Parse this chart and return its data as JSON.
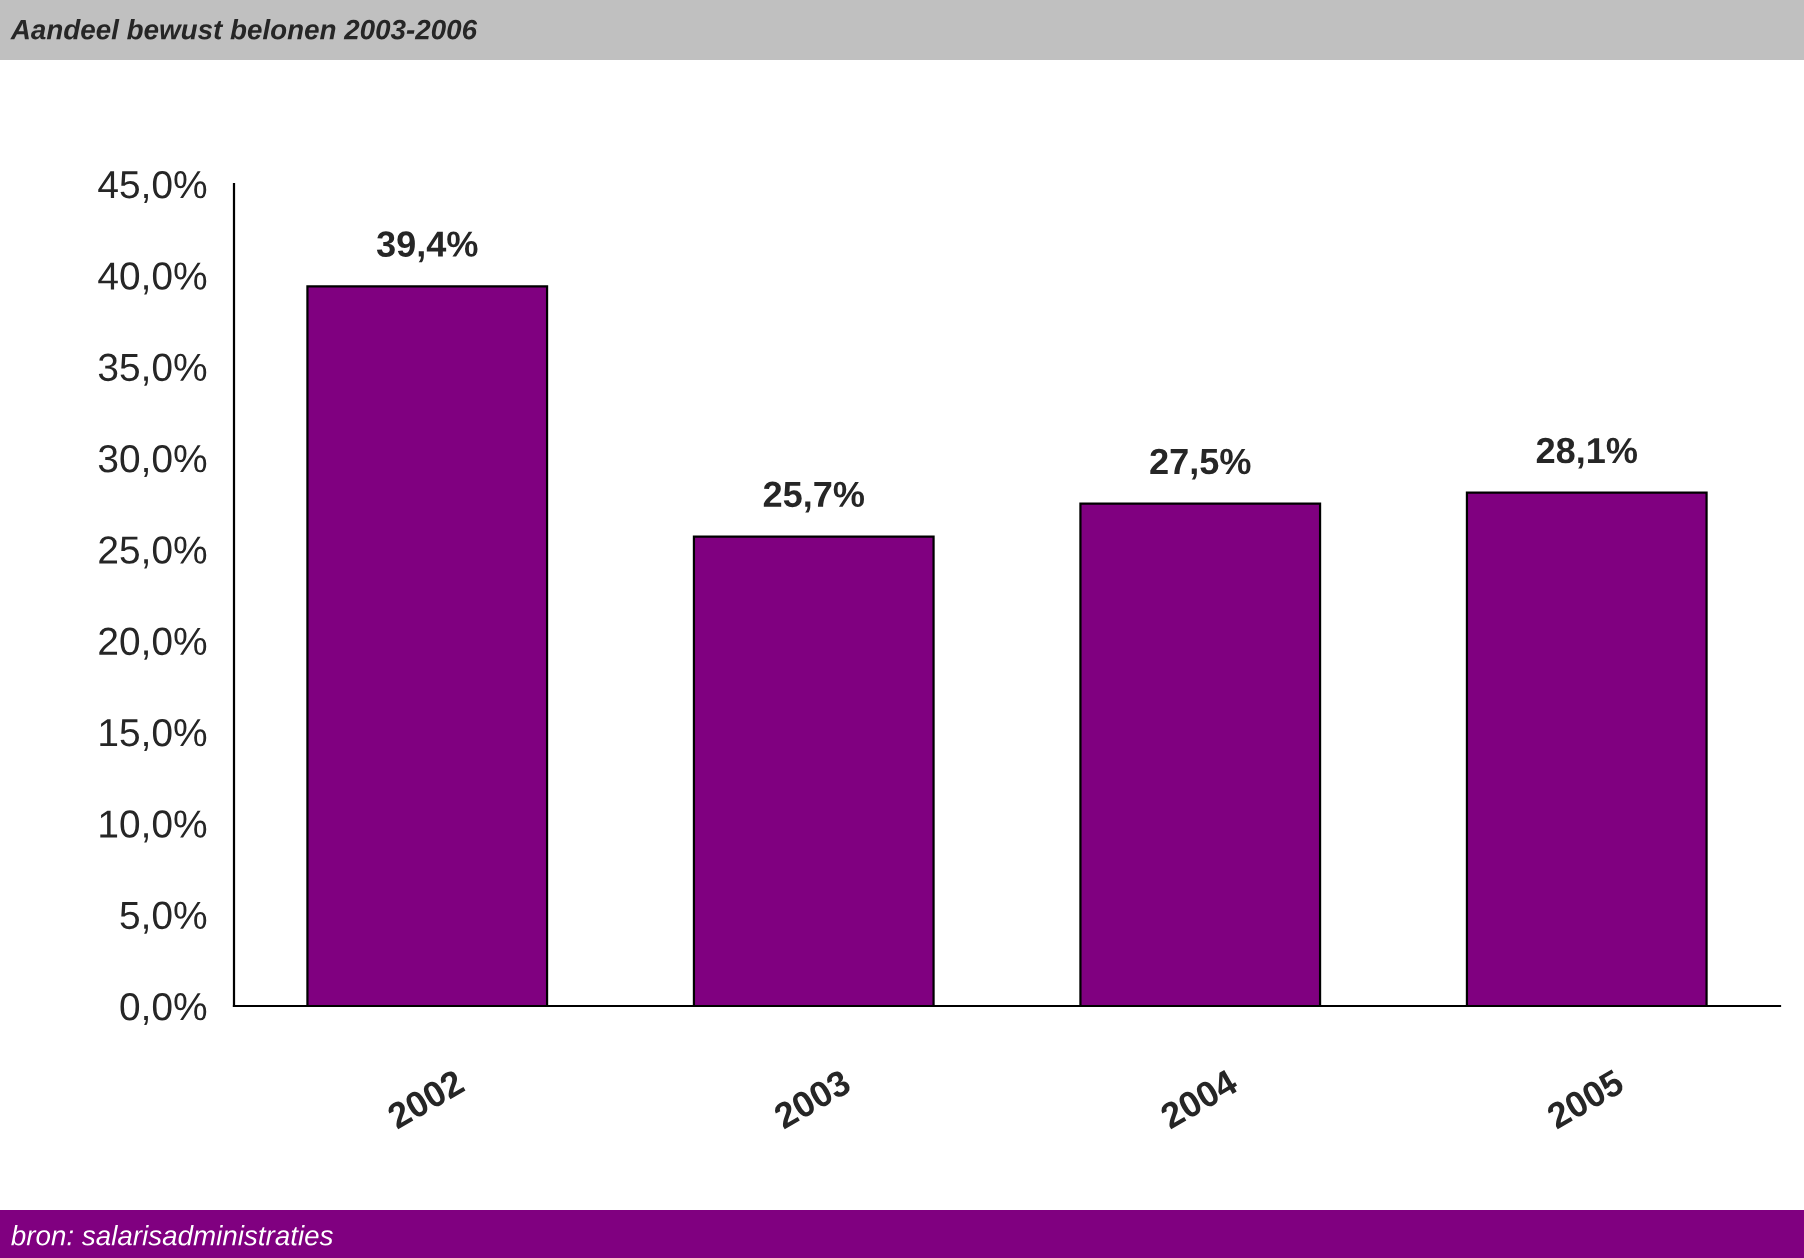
{
  "chart_data": {
    "type": "bar",
    "title": "Aandeel bewust belonen 2003-2006",
    "categories": [
      "2002",
      "2003",
      "2004",
      "2005"
    ],
    "values": [
      39.4,
      25.7,
      27.5,
      28.1
    ],
    "value_labels": [
      "39,4%",
      "25,7%",
      "27,5%",
      "28,1%"
    ],
    "color": "#800080",
    "ylim": [
      0,
      45
    ],
    "yticks": [
      {
        "value": 0,
        "label": "0,0%"
      },
      {
        "value": 5,
        "label": "5,0%"
      },
      {
        "value": 10,
        "label": "10,0%"
      },
      {
        "value": 15,
        "label": "15,0%"
      },
      {
        "value": 20,
        "label": "20,0%"
      },
      {
        "value": 25,
        "label": "25,0%"
      },
      {
        "value": 30,
        "label": "30,0%"
      },
      {
        "value": 35,
        "label": "35,0%"
      },
      {
        "value": 40,
        "label": "40,0%"
      },
      {
        "value": 45,
        "label": "45,0%"
      }
    ],
    "annotations": [
      "bron: salarisadministraties"
    ],
    "grid": false,
    "legend": false
  }
}
